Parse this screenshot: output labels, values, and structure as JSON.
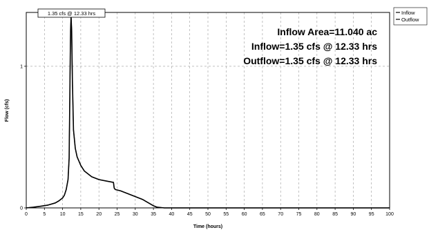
{
  "chart_data": {
    "type": "line",
    "title": "",
    "xlabel": "Time  (hours)",
    "ylabel": "Flow  (cfs)",
    "xlim": [
      0,
      100
    ],
    "ylim": [
      0,
      1.38
    ],
    "x_ticks": [
      "0",
      "5",
      "10",
      "15",
      "20",
      "25",
      "30",
      "35",
      "40",
      "45",
      "50",
      "55",
      "60",
      "65",
      "70",
      "75",
      "80",
      "85",
      "90",
      "95",
      "100"
    ],
    "y_ticks": [
      "0",
      "1"
    ],
    "grid": true,
    "legend_position": "top-right outside",
    "peak_label": "1.35 cfs @ 12.33 hrs",
    "annotations": [
      "Inflow Area=11.040 ac",
      "Inflow=1.35 cfs @ 12.33 hrs",
      "Outflow=1.35 cfs @ 12.33 hrs"
    ],
    "series": [
      {
        "name": "Inflow",
        "color": "#000000",
        "x": [
          0,
          2,
          4,
          6,
          8,
          9,
          10,
          10.5,
          11,
          11.5,
          11.8,
          12,
          12.1,
          12.2,
          12.33,
          12.5,
          12.7,
          13,
          13.5,
          14,
          15,
          16,
          17,
          18,
          20,
          22,
          24,
          24.2,
          24.5,
          26,
          28,
          30,
          32,
          33,
          34,
          35,
          36,
          38,
          40,
          100
        ],
        "y": [
          0,
          0.005,
          0.012,
          0.02,
          0.035,
          0.05,
          0.07,
          0.09,
          0.13,
          0.2,
          0.35,
          0.8,
          1.05,
          1.25,
          1.35,
          1.25,
          0.9,
          0.55,
          0.42,
          0.36,
          0.3,
          0.26,
          0.24,
          0.22,
          0.2,
          0.19,
          0.18,
          0.14,
          0.13,
          0.12,
          0.1,
          0.08,
          0.06,
          0.045,
          0.03,
          0.015,
          0.005,
          0,
          0,
          0
        ]
      },
      {
        "name": "Outflow",
        "color": "#000000",
        "x": [
          0,
          2,
          4,
          6,
          8,
          9,
          10,
          10.5,
          11,
          11.5,
          11.8,
          12,
          12.1,
          12.2,
          12.33,
          12.5,
          12.7,
          13,
          13.5,
          14,
          15,
          16,
          17,
          18,
          20,
          22,
          24,
          24.2,
          24.5,
          26,
          28,
          30,
          32,
          33,
          34,
          35,
          36,
          38,
          40,
          100
        ],
        "y": [
          0,
          0.005,
          0.012,
          0.02,
          0.035,
          0.05,
          0.07,
          0.09,
          0.13,
          0.2,
          0.35,
          0.8,
          1.05,
          1.25,
          1.35,
          1.25,
          0.9,
          0.55,
          0.42,
          0.36,
          0.3,
          0.26,
          0.24,
          0.22,
          0.2,
          0.19,
          0.18,
          0.14,
          0.13,
          0.12,
          0.1,
          0.08,
          0.06,
          0.045,
          0.03,
          0.015,
          0.005,
          0,
          0,
          0
        ]
      }
    ]
  }
}
